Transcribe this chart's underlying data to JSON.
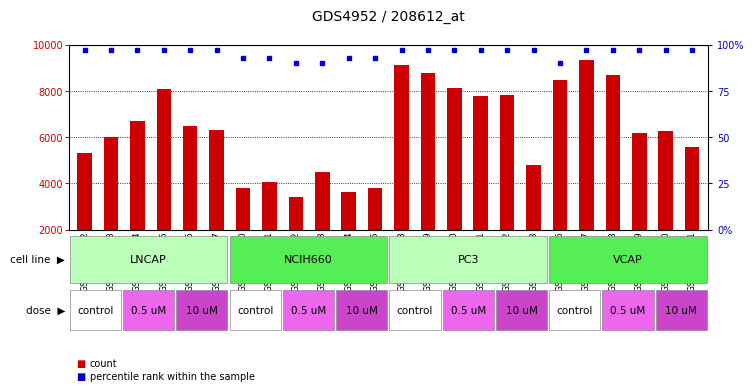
{
  "title": "GDS4952 / 208612_at",
  "samples": [
    "GSM1359772",
    "GSM1359773",
    "GSM1359774",
    "GSM1359775",
    "GSM1359776",
    "GSM1359777",
    "GSM1359760",
    "GSM1359761",
    "GSM1359762",
    "GSM1359763",
    "GSM1359764",
    "GSM1359765",
    "GSM1359778",
    "GSM1359779",
    "GSM1359780",
    "GSM1359781",
    "GSM1359782",
    "GSM1359783",
    "GSM1359766",
    "GSM1359767",
    "GSM1359768",
    "GSM1359769",
    "GSM1359770",
    "GSM1359771"
  ],
  "bar_values": [
    5300,
    6000,
    6700,
    8100,
    6500,
    6300,
    3800,
    4050,
    3400,
    4500,
    3650,
    3800,
    9150,
    8800,
    8150,
    7800,
    7850,
    4800,
    8500,
    9350,
    8700,
    6200,
    6250,
    5600
  ],
  "percentile_values": [
    97,
    97,
    97,
    97,
    97,
    97,
    93,
    93,
    90,
    90,
    93,
    93,
    97,
    97,
    97,
    97,
    97,
    97,
    90,
    97,
    97,
    97,
    97,
    97
  ],
  "bar_color": "#cc0000",
  "percentile_color": "#0000cc",
  "cell_lines": [
    {
      "label": "LNCAP",
      "start": 0,
      "end": 6,
      "color": "#bbffbb"
    },
    {
      "label": "NCIH660",
      "start": 6,
      "end": 12,
      "color": "#55ee55"
    },
    {
      "label": "PC3",
      "start": 12,
      "end": 18,
      "color": "#bbffbb"
    },
    {
      "label": "VCAP",
      "start": 18,
      "end": 24,
      "color": "#55ee55"
    }
  ],
  "dose_color_map": {
    "control": "#ffffff",
    "0.5 uM": "#ee66ee",
    "10 uM": "#cc44cc"
  },
  "ylim": [
    2000,
    10000
  ],
  "yticks": [
    2000,
    4000,
    6000,
    8000,
    10000
  ],
  "ylabel_color": "#cc0000",
  "y2label_color": "#0000cc",
  "grid_color": "#000000",
  "title_fontsize": 10,
  "tick_fontsize": 7,
  "label_fontsize": 8,
  "bar_width": 0.55
}
